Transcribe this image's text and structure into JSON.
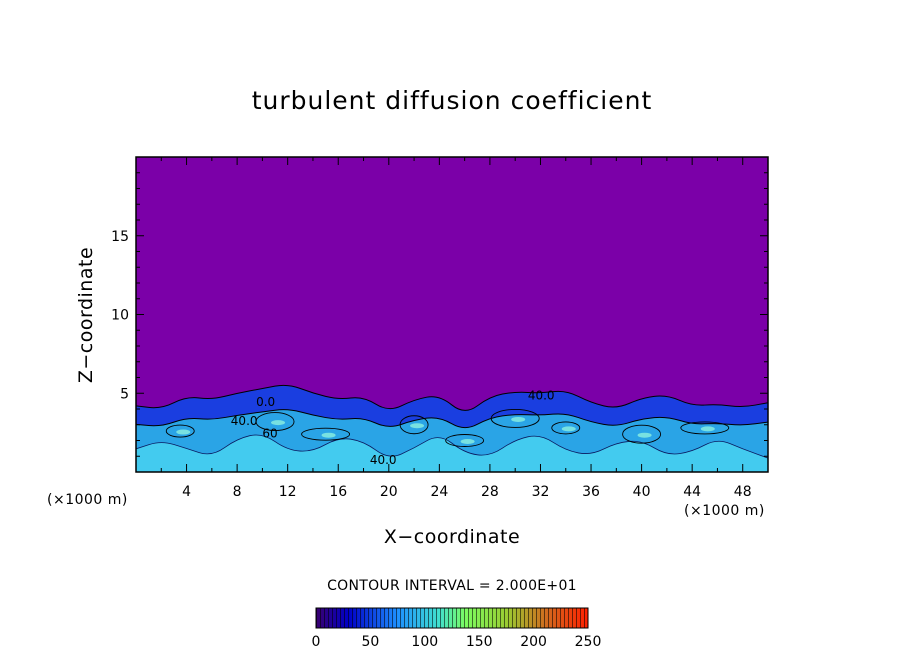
{
  "chart_data": {
    "type": "heatmap",
    "title": "turbulent diffusion coefficient",
    "xlabel": "X−coordinate",
    "ylabel": "Z−coordinate",
    "x_unit": "(×1000 m)",
    "z_unit": "(×1000 m)",
    "xlim": [
      0,
      50
    ],
    "ylim": [
      0,
      20
    ],
    "x_ticks": [
      4,
      8,
      12,
      16,
      20,
      24,
      28,
      32,
      36,
      40,
      44,
      48
    ],
    "y_ticks": [
      5,
      10,
      15
    ],
    "contour_interval_text": "CONTOUR INTERVAL = 2.000E+01",
    "contour_interval": 20,
    "contour_labels": [
      {
        "x": 7.5,
        "z": 3.0,
        "text": "40.0"
      },
      {
        "x": 9.5,
        "z": 4.2,
        "text": "0.0"
      },
      {
        "x": 10.0,
        "z": 2.2,
        "text": "60"
      },
      {
        "x": 18.5,
        "z": 0.5,
        "text": "40.0"
      },
      {
        "x": 31.0,
        "z": 4.6,
        "text": "40.0"
      }
    ],
    "boundary_layer_top_z": [
      [
        0,
        4.2
      ],
      [
        2,
        4.0
      ],
      [
        4,
        4.8
      ],
      [
        6,
        4.6
      ],
      [
        8,
        5.0
      ],
      [
        10,
        5.3
      ],
      [
        12,
        5.6
      ],
      [
        14,
        5.0
      ],
      [
        16,
        4.6
      ],
      [
        18,
        4.8
      ],
      [
        20,
        3.8
      ],
      [
        22,
        4.6
      ],
      [
        24,
        4.9
      ],
      [
        26,
        3.6
      ],
      [
        28,
        4.8
      ],
      [
        30,
        5.1
      ],
      [
        32,
        5.0
      ],
      [
        34,
        5.2
      ],
      [
        36,
        4.4
      ],
      [
        38,
        4.0
      ],
      [
        40,
        4.7
      ],
      [
        42,
        4.9
      ],
      [
        44,
        4.2
      ],
      [
        46,
        4.3
      ],
      [
        48,
        4.1
      ],
      [
        50,
        4.4
      ]
    ],
    "colorbar": {
      "min": 0,
      "max": 250,
      "tick_values": [
        0,
        50,
        100,
        150,
        200,
        250
      ],
      "tick_labels": [
        "0",
        "50",
        "100",
        "150",
        "200",
        "250"
      ]
    },
    "background_color": "#7b00a8"
  }
}
